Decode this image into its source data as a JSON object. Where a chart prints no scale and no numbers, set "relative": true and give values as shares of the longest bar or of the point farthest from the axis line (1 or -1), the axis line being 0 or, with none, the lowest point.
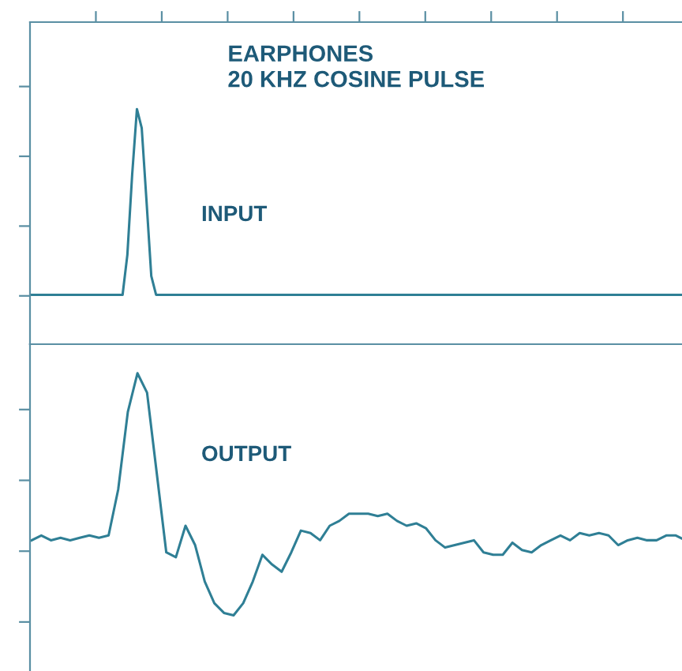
{
  "chart_data": [
    {
      "type": "line",
      "relative": true,
      "title": "EARPHONES",
      "subtitle": "20 KHZ COSINE PULSE",
      "annotations": [
        "INPUT"
      ],
      "categories": [
        null,
        null,
        null,
        null,
        null,
        null,
        null,
        null,
        null,
        null,
        null,
        null,
        null,
        null,
        null,
        null,
        null,
        null,
        null,
        null,
        null,
        null,
        null,
        null,
        null,
        null,
        null,
        null,
        null,
        null,
        null,
        null,
        null,
        null,
        null,
        null,
        null,
        null,
        null,
        null,
        null,
        null,
        null,
        null,
        null,
        null,
        null,
        null,
        null,
        null,
        null,
        null,
        null,
        null,
        null,
        null,
        null,
        null,
        null,
        null,
        null,
        null,
        null,
        null,
        null,
        null,
        null,
        null,
        null,
        null,
        null,
        null,
        null,
        null,
        null,
        null,
        null,
        null,
        null,
        null,
        null,
        null,
        null,
        null,
        null,
        null,
        null,
        null,
        null,
        null,
        null,
        null,
        null,
        null,
        null,
        null,
        null,
        null,
        null,
        null,
        null,
        null,
        null,
        null,
        null,
        null,
        null,
        null,
        null,
        null,
        null,
        null,
        null,
        null,
        null,
        null,
        null,
        null,
        null,
        null,
        null,
        null,
        null,
        null,
        null,
        null,
        null,
        null,
        null,
        null,
        null,
        null,
        null,
        null,
        null,
        null,
        null,
        null
      ],
      "series": [
        {
          "color": "#2f7f95",
          "values": [
            0.21,
            0.21,
            0.21,
            0.21,
            0.21,
            0.21,
            0.21,
            0.21,
            0.21,
            0.21,
            0.21,
            0.21,
            0.21,
            0.21,
            0.21,
            0.21,
            0.21,
            0.21,
            0.21,
            0.21,
            0.38,
            0.72,
            1,
            0.92,
            0.61,
            0.29,
            0.21,
            0.21,
            0.21,
            0.21,
            0.21,
            0.21,
            0.21,
            0.21,
            0.21,
            0.21,
            0.21,
            0.21,
            0.21,
            0.21,
            0.21,
            0.21,
            0.21,
            0.21,
            0.21,
            0.21,
            0.21,
            0.21,
            0.21,
            0.21,
            0.21,
            0.21,
            0.21,
            0.21,
            0.21,
            0.21,
            0.21,
            0.21,
            0.21,
            0.21,
            0.21,
            0.21,
            0.21,
            0.21,
            0.21,
            0.21,
            0.21,
            0.21,
            0.21,
            0.21,
            0.21,
            0.21,
            0.21,
            0.21,
            0.21,
            0.21,
            0.21,
            0.21,
            0.21,
            0.21,
            0.21,
            0.21,
            0.21,
            0.21,
            0.21,
            0.21,
            0.21,
            0.21,
            0.21,
            0.21,
            0.21,
            0.21,
            0.21,
            0.21,
            0.21,
            0.21,
            0.21,
            0.21,
            0.21,
            0.21,
            0.21,
            0.21,
            0.21,
            0.21,
            0.21,
            0.21,
            0.21,
            0.21,
            0.21,
            0.21,
            0.21,
            0.21,
            0.21,
            0.21,
            0.21,
            0.21,
            0.21,
            0.21,
            0.21,
            0.21,
            0.21,
            0.21,
            0.21,
            0.21,
            0.21,
            0.21,
            0.21,
            0.21,
            0.21,
            0.21,
            0.21,
            0.21,
            0.21,
            0.21,
            0.21,
            0.21,
            0.21,
            0.21
          ]
        }
      ]
    },
    {
      "type": "line",
      "relative": true,
      "annotations": [
        "OUTPUT"
      ],
      "categories": [
        null,
        null,
        null,
        null,
        null,
        null,
        null,
        null,
        null,
        null,
        null,
        null,
        null,
        null,
        null,
        null,
        null,
        null,
        null,
        null,
        null,
        null,
        null,
        null,
        null,
        null,
        null,
        null,
        null,
        null,
        null,
        null,
        null,
        null,
        null,
        null,
        null,
        null,
        null,
        null,
        null,
        null,
        null,
        null,
        null,
        null,
        null,
        null,
        null,
        null,
        null,
        null,
        null,
        null,
        null,
        null,
        null,
        null,
        null,
        null,
        null,
        null,
        null,
        null,
        null,
        null,
        null,
        null,
        null
      ],
      "series": [
        {
          "color": "#2f7f95",
          "values": [
            0.31,
            0.33,
            0.31,
            0.32,
            0.31,
            0.32,
            0.33,
            0.32,
            0.33,
            0.52,
            0.84,
            1,
            0.92,
            0.59,
            0.26,
            0.24,
            0.37,
            0.29,
            0.14,
            0.05,
            0.01,
            0,
            0.05,
            0.14,
            0.25,
            0.21,
            0.18,
            0.26,
            0.35,
            0.34,
            0.31,
            0.37,
            0.39,
            0.42,
            0.42,
            0.42,
            0.41,
            0.42,
            0.39,
            0.37,
            0.38,
            0.36,
            0.31,
            0.28,
            0.29,
            0.3,
            0.31,
            0.26,
            0.25,
            0.25,
            0.3,
            0.27,
            0.26,
            0.29,
            0.31,
            0.33,
            0.31,
            0.34,
            0.33,
            0.34,
            0.33,
            0.29,
            0.31,
            0.32,
            0.31,
            0.31,
            0.33,
            0.33,
            0.31
          ]
        }
      ]
    }
  ]
}
